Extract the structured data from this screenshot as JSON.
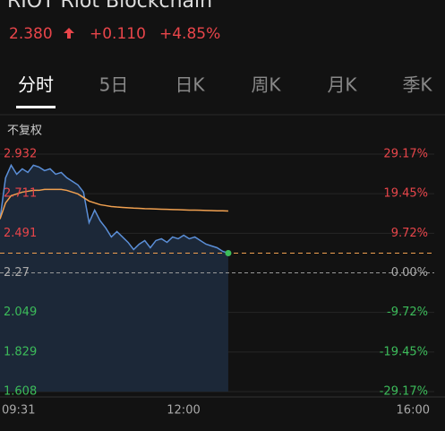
{
  "header": {
    "title": "RIOT  Riot Blockchain",
    "price": "2.380",
    "change": "+0.110",
    "change_pct": "+4.85%"
  },
  "tabs": [
    "分时",
    "5日",
    "日K",
    "周K",
    "月K",
    "季K"
  ],
  "adjust_label": "不复权",
  "chart_data": {
    "type": "line",
    "series": [
      {
        "name": "price",
        "color": "#5b8fd8",
        "values": [
          2.57,
          2.8,
          2.87,
          2.82,
          2.85,
          2.83,
          2.87,
          2.86,
          2.84,
          2.85,
          2.82,
          2.83,
          2.8,
          2.78,
          2.76,
          2.72,
          2.55,
          2.62,
          2.56,
          2.52,
          2.47,
          2.5,
          2.47,
          2.44,
          2.4,
          2.43,
          2.45,
          2.41,
          2.45,
          2.46,
          2.44,
          2.47,
          2.46,
          2.48,
          2.46,
          2.47,
          2.45,
          2.43,
          2.42,
          2.41,
          2.39,
          2.38
        ]
      },
      {
        "name": "average",
        "color": "#f0a050",
        "values": [
          2.57,
          2.66,
          2.7,
          2.71,
          2.72,
          2.725,
          2.73,
          2.73,
          2.735,
          2.735,
          2.735,
          2.735,
          2.73,
          2.72,
          2.71,
          2.69,
          2.67,
          2.66,
          2.65,
          2.645,
          2.64,
          2.637,
          2.635,
          2.633,
          2.631,
          2.63,
          2.628,
          2.627,
          2.626,
          2.625,
          2.624,
          2.623,
          2.622,
          2.621,
          2.62,
          2.62,
          2.619,
          2.618,
          2.617,
          2.616,
          2.616,
          2.615
        ]
      }
    ],
    "ylim": [
      1.608,
      2.932
    ],
    "yticks": [
      2.932,
      2.711,
      2.491,
      2.27,
      2.049,
      1.829,
      1.608
    ],
    "y2lim": [
      -29.17,
      29.17
    ],
    "y2ticks": [
      {
        "value": 29.17,
        "label": "29.17%"
      },
      {
        "value": 19.45,
        "label": "19.45%"
      },
      {
        "value": 9.72,
        "label": "9.72%"
      },
      {
        "value": 0,
        "label": "0.00%"
      },
      {
        "value": -9.72,
        "label": "-9.72%"
      },
      {
        "value": -19.45,
        "label": "-19.45%"
      },
      {
        "value": -29.17,
        "label": "-29.17%"
      }
    ],
    "xticks": [
      "09:31",
      "12:00",
      "16:00"
    ],
    "up_color": "#e8454a",
    "down_color": "#3cbc5a"
  }
}
